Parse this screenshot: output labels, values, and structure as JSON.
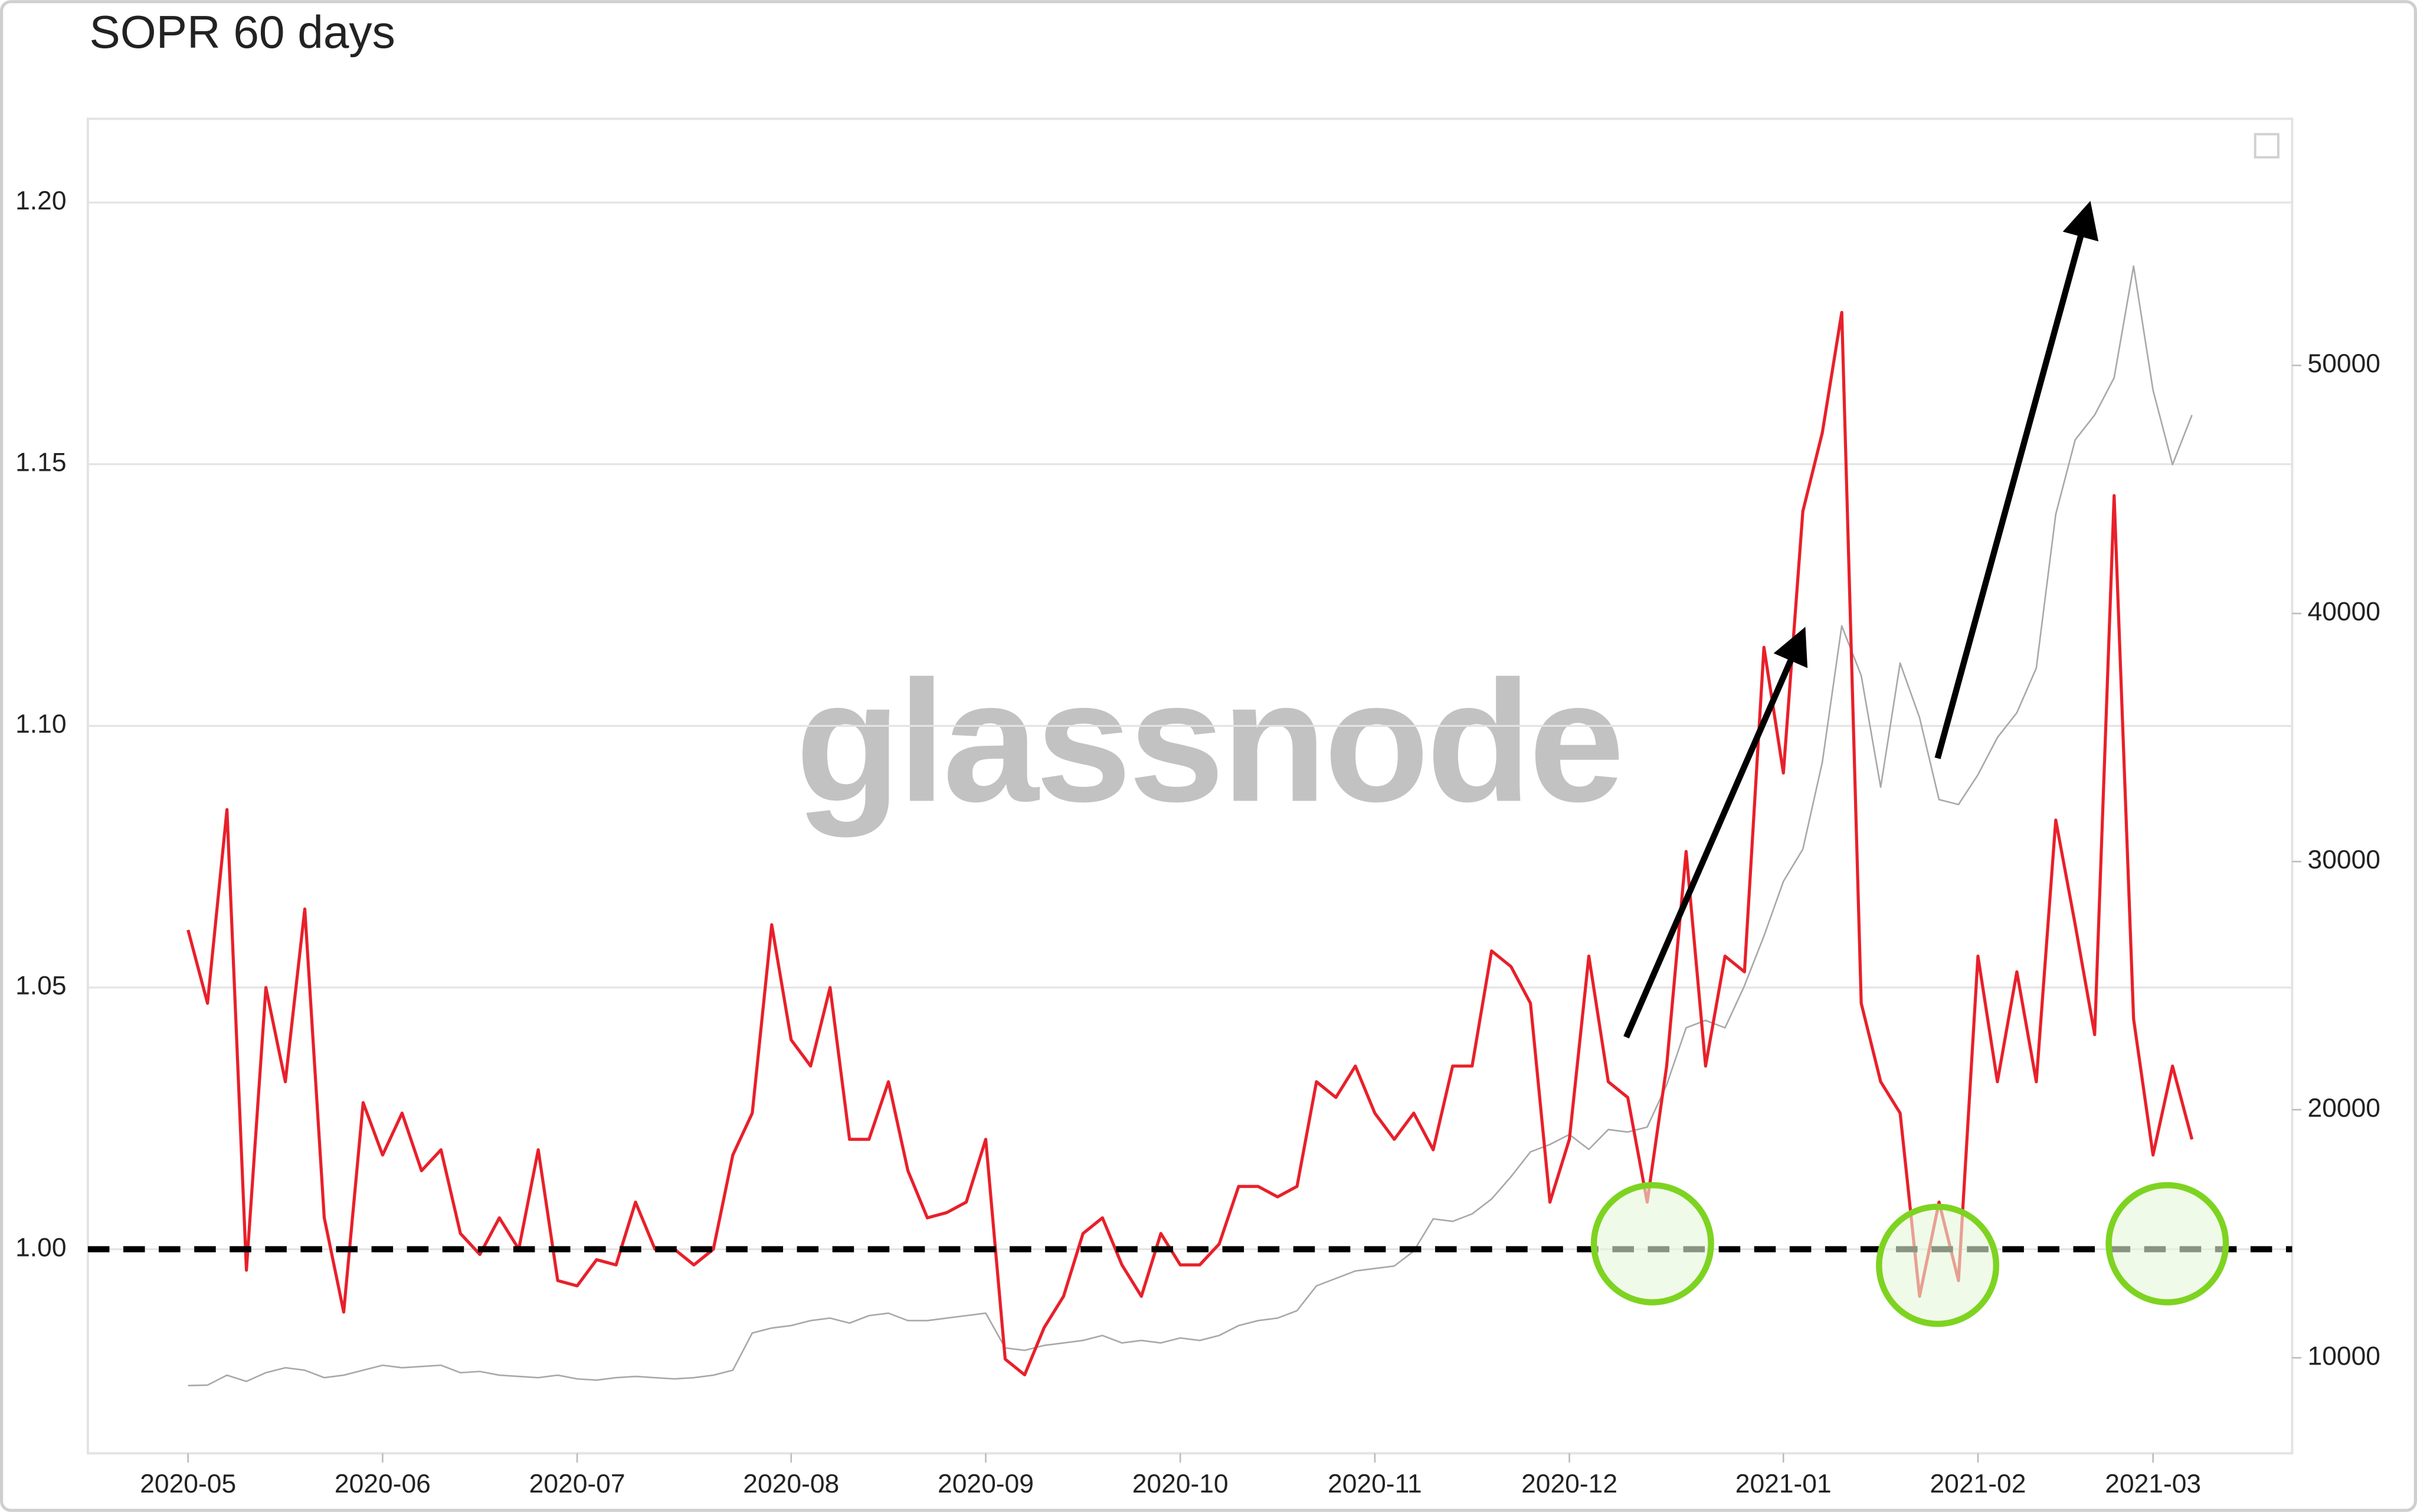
{
  "chart_data": {
    "type": "line",
    "title": "SOPR 60 days",
    "watermark": "glassnode",
    "categories": [
      "2020-05",
      null,
      null,
      null,
      null,
      null,
      null,
      null,
      null,
      null,
      "2020-06",
      null,
      null,
      null,
      null,
      null,
      null,
      null,
      null,
      null,
      "2020-07",
      null,
      null,
      null,
      null,
      null,
      null,
      null,
      null,
      null,
      null,
      "2020-08",
      null,
      null,
      null,
      null,
      null,
      null,
      null,
      null,
      null,
      "2020-09",
      null,
      null,
      null,
      null,
      null,
      null,
      null,
      null,
      null,
      "2020-10",
      null,
      null,
      null,
      null,
      null,
      null,
      null,
      null,
      null,
      "2020-11",
      null,
      null,
      null,
      null,
      null,
      null,
      null,
      null,
      null,
      "2020-12",
      null,
      null,
      null,
      null,
      null,
      null,
      null,
      null,
      null,
      null,
      "2021-01",
      null,
      null,
      null,
      null,
      null,
      null,
      null,
      null,
      null,
      "2021-02",
      null,
      null,
      null,
      null,
      null,
      null,
      null,
      null,
      "2021-03",
      null,
      null
    ],
    "series": [
      {
        "color": "#e8202a",
        "axis": "y",
        "values": [
          1.061,
          1.047,
          1.084,
          0.996,
          1.05,
          1.032,
          1.065,
          1.006,
          0.988,
          1.028,
          1.018,
          1.026,
          1.015,
          1.019,
          1.003,
          0.999,
          1.006,
          1.0,
          1.019,
          0.994,
          0.993,
          0.998,
          0.997,
          1.009,
          1.0,
          1.0,
          0.997,
          1.0,
          1.018,
          1.026,
          1.062,
          1.04,
          1.035,
          1.05,
          1.021,
          1.021,
          1.032,
          1.015,
          1.006,
          1.007,
          1.009,
          1.021,
          0.979,
          0.976,
          0.985,
          0.991,
          1.003,
          1.006,
          0.997,
          0.991,
          1.003,
          0.997,
          0.997,
          1.001,
          1.012,
          1.012,
          1.01,
          1.012,
          1.032,
          1.029,
          1.035,
          1.026,
          1.021,
          1.026,
          1.019,
          1.035,
          1.035,
          1.057,
          1.054,
          1.047,
          1.009,
          1.021,
          1.056,
          1.032,
          1.029,
          1.009,
          1.035,
          1.076,
          1.035,
          1.056,
          1.053,
          1.115,
          1.091,
          1.141,
          1.156,
          1.179,
          1.047,
          1.032,
          1.026,
          0.991,
          1.009,
          0.994,
          1.056,
          1.032,
          1.053,
          1.032,
          1.082,
          1.062,
          1.041,
          1.144,
          1.044,
          1.018,
          1.035,
          1.021
        ]
      },
      {
        "color": "#a8a8a8",
        "axis": "y2",
        "values": [
          8880,
          8900,
          9300,
          9050,
          9400,
          9600,
          9500,
          9200,
          9300,
          9500,
          9700,
          9600,
          9650,
          9700,
          9400,
          9450,
          9300,
          9250,
          9200,
          9300,
          9150,
          9100,
          9200,
          9250,
          9200,
          9150,
          9200,
          9300,
          9500,
          11000,
          11200,
          11300,
          11500,
          11600,
          11400,
          11700,
          11800,
          11500,
          11500,
          11600,
          11700,
          11800,
          10400,
          10300,
          10500,
          10600,
          10700,
          10900,
          10600,
          10700,
          10600,
          10800,
          10700,
          10900,
          11300,
          11500,
          11600,
          11900,
          12900,
          13200,
          13500,
          13600,
          13700,
          14300,
          15600,
          15500,
          15800,
          16400,
          17300,
          18300,
          18600,
          19000,
          18400,
          19200,
          19100,
          19300,
          21000,
          23300,
          23600,
          23300,
          25000,
          27000,
          29200,
          30500,
          34000,
          39500,
          37500,
          33000,
          38000,
          35800,
          32500,
          32300,
          33500,
          35000,
          36000,
          37800,
          44000,
          47000,
          48000,
          49500,
          54000,
          49000,
          46000,
          48000
        ]
      }
    ],
    "ylim": [
      0.961,
      1.216
    ],
    "yticks": [
      {
        "value": 1,
        "label": "1.00"
      },
      1.05,
      {
        "value": 1.1,
        "label": "1.10"
      },
      1.15,
      {
        "value": 1.2,
        "label": "1.20"
      }
    ],
    "y2lim": [
      6150,
      59940
    ],
    "y2ticks": [
      10000,
      20000,
      30000,
      40000,
      50000
    ],
    "hline": 1.0,
    "grid": true
  }
}
